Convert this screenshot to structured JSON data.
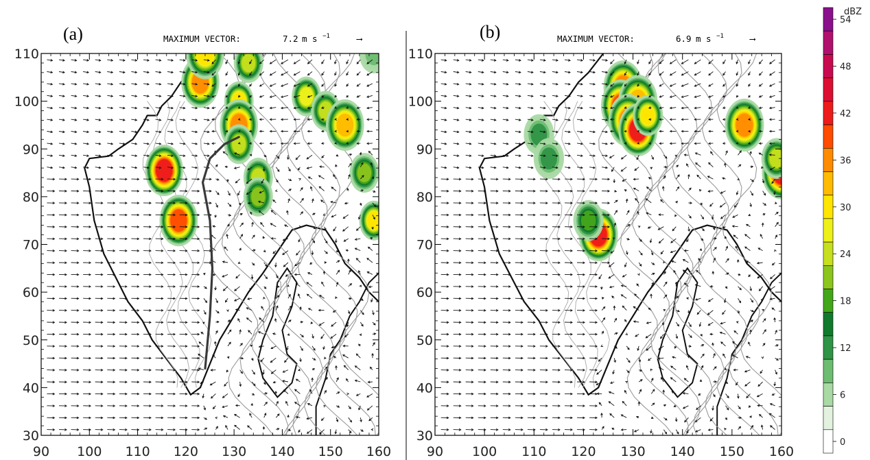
{
  "chart_data": [
    {
      "type": "other",
      "panel_label": "(a)",
      "vector_header": {
        "prefix": "MAXIMUM VECTOR:",
        "value": "7.2",
        "unit_main": "m s",
        "unit_exp": "−1",
        "arrow": "⟶"
      },
      "x_ticks": [
        90,
        100,
        110,
        120,
        130,
        140,
        150,
        160
      ],
      "y_ticks": [
        30,
        40,
        50,
        60,
        70,
        80,
        90,
        100,
        110
      ],
      "xlim": [
        90,
        160
      ],
      "ylim": [
        30,
        110
      ],
      "max_vector": 7.2,
      "reflectivity_cells": [
        {
          "x": 115.5,
          "y": 85.5,
          "peak_dbz": 44
        },
        {
          "x": 118.5,
          "y": 75.0,
          "peak_dbz": 40
        },
        {
          "x": 123,
          "y": 104,
          "peak_dbz": 36
        },
        {
          "x": 124,
          "y": 110,
          "peak_dbz": 32
        },
        {
          "x": 133,
          "y": 108,
          "peak_dbz": 24
        },
        {
          "x": 131,
          "y": 100,
          "peak_dbz": 30
        },
        {
          "x": 131,
          "y": 95,
          "peak_dbz": 38
        },
        {
          "x": 131,
          "y": 91,
          "peak_dbz": 24
        },
        {
          "x": 135,
          "y": 84,
          "peak_dbz": 24
        },
        {
          "x": 135,
          "y": 80,
          "peak_dbz": 22
        },
        {
          "x": 145,
          "y": 101,
          "peak_dbz": 28
        },
        {
          "x": 149,
          "y": 98,
          "peak_dbz": 26
        },
        {
          "x": 153,
          "y": 95,
          "peak_dbz": 34
        },
        {
          "x": 157,
          "y": 85,
          "peak_dbz": 22
        },
        {
          "x": 159,
          "y": 75,
          "peak_dbz": 30
        },
        {
          "x": 159,
          "y": 110,
          "peak_dbz": 10
        }
      ],
      "convergence_line": [
        [
          124,
          44
        ],
        [
          125,
          55
        ],
        [
          125.5,
          65
        ],
        [
          125,
          75
        ],
        [
          123.5,
          83
        ],
        [
          125,
          88
        ],
        [
          128,
          91
        ],
        [
          131,
          92.5
        ]
      ]
    },
    {
      "type": "other",
      "panel_label": "(b)",
      "vector_header": {
        "prefix": "MAXIMUM VECTOR:",
        "value": "6.9",
        "unit_main": "m s",
        "unit_exp": "−1",
        "arrow": "⟶"
      },
      "x_ticks": [
        90,
        100,
        110,
        120,
        130,
        140,
        150,
        160
      ],
      "y_ticks": [
        30,
        40,
        50,
        60,
        70,
        80,
        90,
        100,
        110
      ],
      "xlim": [
        90,
        160
      ],
      "ylim": [
        30,
        110
      ],
      "max_vector": 6.9,
      "reflectivity_cells": [
        {
          "x": 111,
          "y": 93,
          "peak_dbz": 14
        },
        {
          "x": 113,
          "y": 88,
          "peak_dbz": 12
        },
        {
          "x": 123,
          "y": 72,
          "peak_dbz": 44
        },
        {
          "x": 121,
          "y": 75,
          "peak_dbz": 20
        },
        {
          "x": 128,
          "y": 103,
          "peak_dbz": 36
        },
        {
          "x": 127.5,
          "y": 99,
          "peak_dbz": 40
        },
        {
          "x": 131,
          "y": 100,
          "peak_dbz": 34
        },
        {
          "x": 129,
          "y": 96,
          "peak_dbz": 38
        },
        {
          "x": 131,
          "y": 94,
          "peak_dbz": 42
        },
        {
          "x": 133,
          "y": 97,
          "peak_dbz": 30
        },
        {
          "x": 152.5,
          "y": 95,
          "peak_dbz": 36
        },
        {
          "x": 160,
          "y": 85,
          "peak_dbz": 42
        },
        {
          "x": 159,
          "y": 88,
          "peak_dbz": 26
        }
      ],
      "convergence_line": []
    }
  ],
  "colorbar": {
    "unit": "dBZ",
    "labels": [
      "0",
      "6",
      "12",
      "18",
      "24",
      "30",
      "36",
      "42",
      "48",
      "54"
    ],
    "colors": [
      "#ffffff",
      "#e2f2de",
      "#a9d9a4",
      "#6dbd71",
      "#2f9446",
      "#127a2d",
      "#43a71a",
      "#8cc51e",
      "#c6df1e",
      "#eef01a",
      "#ffe500",
      "#ffbb00",
      "#ff8c00",
      "#ff4c00",
      "#ee1b1b",
      "#dc0f32",
      "#c80a50",
      "#b0106e",
      "#8a108c"
    ]
  }
}
